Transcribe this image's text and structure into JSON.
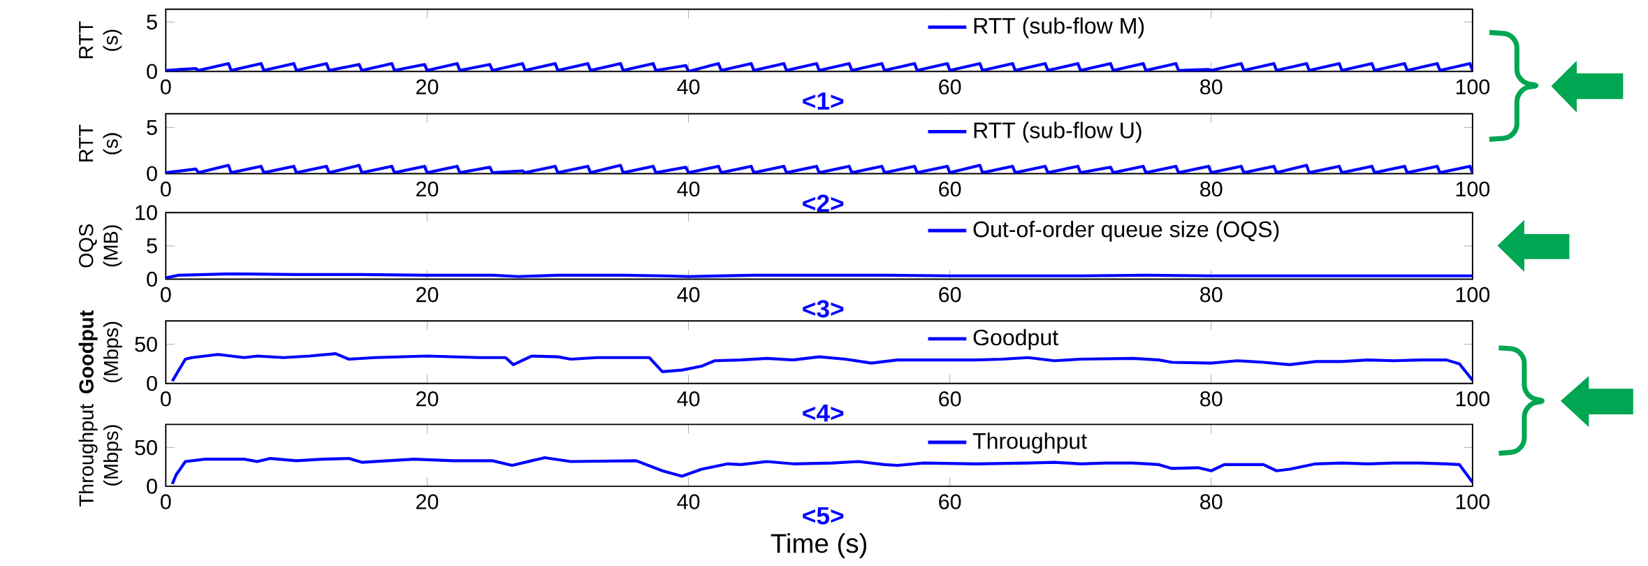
{
  "chart_data": [
    {
      "type": "line",
      "ylabel": "RTT (s)",
      "xlim": [
        0,
        100
      ],
      "ylim": [
        0,
        6.3
      ],
      "xticks": [
        0,
        20,
        40,
        60,
        80,
        100
      ],
      "yticks": [
        0,
        5
      ],
      "legend": "top",
      "annotations": [
        "<1>"
      ],
      "x": [
        0,
        2.3,
        2.5,
        4.8,
        5,
        7.3,
        7.5,
        9.8,
        10,
        12.3,
        12.5,
        14.8,
        15,
        17.3,
        17.5,
        19.8,
        20,
        22.3,
        22.5,
        24.8,
        25,
        27.3,
        27.5,
        29.8,
        30,
        32.3,
        32.5,
        34.8,
        35,
        37.3,
        37.5,
        39.8,
        40,
        42.3,
        42.5,
        44.8,
        45,
        47.3,
        47.5,
        49.8,
        50,
        52.3,
        52.5,
        54.8,
        55,
        57.3,
        57.5,
        59.8,
        60,
        62.3,
        62.5,
        64.8,
        65,
        67.3,
        67.5,
        69.8,
        70,
        72.3,
        72.5,
        74.8,
        75,
        77.3,
        77.5,
        79.8,
        80,
        82.3,
        82.5,
        84.8,
        85,
        87.3,
        87.5,
        89.8,
        90,
        92.3,
        92.5,
        94.8,
        95,
        97.3,
        97.5,
        99.8,
        100
      ],
      "series": [
        {
          "name": "RTT (sub-flow M)",
          "color": "#0000ff",
          "values": [
            0.1,
            0.3,
            0.1,
            0.8,
            0.1,
            0.8,
            0.1,
            0.8,
            0.1,
            0.8,
            0.1,
            0.7,
            0.1,
            0.8,
            0.1,
            0.7,
            0.1,
            0.8,
            0.1,
            0.7,
            0.1,
            0.8,
            0.1,
            0.8,
            0.1,
            0.8,
            0.1,
            0.8,
            0.1,
            0.8,
            0.1,
            0.6,
            0.0,
            0.8,
            0.1,
            0.8,
            0.1,
            0.8,
            0.1,
            0.8,
            0.1,
            0.8,
            0.1,
            0.8,
            0.1,
            0.8,
            0.1,
            0.8,
            0.1,
            0.8,
            0.1,
            0.8,
            0.1,
            0.8,
            0.1,
            0.8,
            0.1,
            0.8,
            0.1,
            0.8,
            0.1,
            0.8,
            0.1,
            0.2,
            0.1,
            0.8,
            0.1,
            0.8,
            0.1,
            0.8,
            0.1,
            0.8,
            0.1,
            0.8,
            0.1,
            0.8,
            0.1,
            0.8,
            0.1,
            0.8,
            0.1
          ]
        }
      ]
    },
    {
      "type": "line",
      "ylabel": "RTT (s)",
      "xlim": [
        0,
        100
      ],
      "ylim": [
        0,
        6.5
      ],
      "xticks": [
        0,
        20,
        40,
        60,
        80,
        100
      ],
      "yticks": [
        0,
        5
      ],
      "legend": "top",
      "annotations": [
        "<2>"
      ],
      "x": [
        0,
        2.3,
        2.5,
        4.8,
        5,
        7.3,
        7.5,
        9.8,
        10,
        12.3,
        12.5,
        14.8,
        15,
        17.3,
        17.5,
        19.8,
        20,
        22.3,
        22.5,
        24.8,
        25,
        27.3,
        27.5,
        29.8,
        30,
        32.3,
        32.5,
        34.8,
        35,
        37.3,
        37.5,
        39.8,
        40,
        42.3,
        42.5,
        44.8,
        45,
        47.3,
        47.5,
        49.8,
        50,
        52.3,
        52.5,
        54.8,
        55,
        57.3,
        57.5,
        59.8,
        60,
        62.3,
        62.5,
        64.8,
        65,
        67.3,
        67.5,
        69.8,
        70,
        72.3,
        72.5,
        74.8,
        75,
        77.3,
        77.5,
        79.8,
        80,
        82.3,
        82.5,
        84.8,
        85,
        87.3,
        87.5,
        89.8,
        90,
        92.3,
        92.5,
        94.8,
        95,
        97.3,
        97.5,
        99.8,
        100
      ],
      "series": [
        {
          "name": "RTT (sub-flow U)",
          "color": "#0000ff",
          "values": [
            0.1,
            0.5,
            0.1,
            0.9,
            0.1,
            0.8,
            0.1,
            0.8,
            0.1,
            0.8,
            0.1,
            0.9,
            0.1,
            0.8,
            0.1,
            0.8,
            0.1,
            0.8,
            0.1,
            0.7,
            0.1,
            0.3,
            0.1,
            0.8,
            0.1,
            0.8,
            0.1,
            0.9,
            0.1,
            0.8,
            0.1,
            0.7,
            0.1,
            0.8,
            0.1,
            0.8,
            0.1,
            0.8,
            0.1,
            0.8,
            0.1,
            0.8,
            0.1,
            0.8,
            0.1,
            0.8,
            0.1,
            0.8,
            0.1,
            0.9,
            0.1,
            0.8,
            0.1,
            0.8,
            0.1,
            0.8,
            0.1,
            0.7,
            0.1,
            0.8,
            0.1,
            0.8,
            0.1,
            0.8,
            0.1,
            0.8,
            0.1,
            0.8,
            0.1,
            0.9,
            0.1,
            0.8,
            0.1,
            0.8,
            0.1,
            0.8,
            0.1,
            0.8,
            0.1,
            0.8,
            0.1
          ]
        }
      ]
    },
    {
      "type": "line",
      "ylabel": "OQS (MB)",
      "xlim": [
        0,
        100
      ],
      "ylim": [
        0,
        10
      ],
      "xticks": [
        0,
        20,
        40,
        60,
        80,
        100
      ],
      "yticks": [
        0,
        5,
        10
      ],
      "legend": "top",
      "annotations": [
        "<3>"
      ],
      "x": [
        0,
        1,
        5,
        10,
        15,
        20,
        25,
        27,
        30,
        35,
        38,
        40,
        45,
        50,
        55,
        60,
        65,
        70,
        75,
        80,
        85,
        90,
        95,
        100
      ],
      "series": [
        {
          "name": "Out-of-order  queue size (OQS)",
          "color": "#0000ff",
          "values": [
            0.2,
            0.6,
            0.8,
            0.7,
            0.7,
            0.6,
            0.6,
            0.4,
            0.6,
            0.6,
            0.5,
            0.4,
            0.6,
            0.6,
            0.6,
            0.5,
            0.5,
            0.5,
            0.6,
            0.5,
            0.5,
            0.5,
            0.5,
            0.5
          ]
        }
      ]
    },
    {
      "type": "line",
      "ylabel": "**Goodput** (Mbps)",
      "xlim": [
        0,
        100
      ],
      "ylim": [
        0,
        80
      ],
      "xticks": [
        0,
        20,
        40,
        60,
        80,
        100
      ],
      "yticks": [
        0,
        50
      ],
      "legend": "top",
      "annotations": [
        "<4>"
      ],
      "x": [
        0.5,
        1.5,
        2,
        4,
        6,
        7,
        9,
        11,
        13,
        14,
        16,
        20,
        24,
        26,
        26.6,
        28,
        30,
        31,
        33,
        37,
        38,
        39.5,
        41,
        42,
        44,
        46,
        48,
        50,
        52,
        54,
        56,
        60,
        62,
        64,
        66,
        68,
        70,
        74,
        76,
        77,
        80,
        82,
        84,
        86,
        88,
        90,
        92,
        94,
        96,
        98,
        99,
        100
      ],
      "series": [
        {
          "name": "Goodput",
          "color": "#0000ff",
          "values": [
            3,
            31,
            33,
            37,
            33,
            35,
            33,
            35,
            38,
            31,
            33,
            35,
            33,
            33,
            24,
            35,
            34,
            31,
            33,
            33,
            15,
            17,
            22,
            29,
            30,
            32,
            30,
            34,
            31,
            26,
            30,
            30,
            30,
            31,
            33,
            29,
            31,
            32,
            30,
            27,
            26,
            29,
            27,
            24,
            28,
            28,
            30,
            29,
            30,
            30,
            25,
            4
          ]
        }
      ]
    },
    {
      "type": "line",
      "ylabel": "Throughput (Mbps)",
      "xlabel": "Time (s)",
      "xlim": [
        0,
        100
      ],
      "ylim": [
        0,
        80
      ],
      "xticks": [
        0,
        20,
        40,
        60,
        80,
        100
      ],
      "yticks": [
        0,
        50
      ],
      "legend": "top",
      "annotations": [
        "<5>"
      ],
      "x": [
        0.5,
        0.8,
        1.5,
        3,
        6,
        7,
        8,
        10,
        12,
        14,
        15,
        17,
        19,
        22,
        25,
        26.5,
        28,
        29,
        31,
        36,
        38,
        39.5,
        41,
        43,
        44,
        46,
        48,
        51,
        53,
        55,
        56,
        58,
        62,
        66,
        68,
        70,
        72,
        74,
        76,
        77,
        79,
        80,
        81,
        84,
        85,
        86,
        88,
        90,
        92,
        94,
        96,
        98,
        99,
        100
      ],
      "series": [
        {
          "name": "Throughput",
          "color": "#0000ff",
          "values": [
            3,
            15,
            32,
            35,
            35,
            32,
            36,
            33,
            35,
            36,
            31,
            33,
            35,
            33,
            33,
            27,
            33,
            37,
            32,
            33,
            20,
            13,
            22,
            29,
            28,
            32,
            29,
            30,
            32,
            28,
            27,
            30,
            29,
            30,
            31,
            29,
            30,
            30,
            28,
            23,
            24,
            20,
            28,
            28,
            20,
            22,
            29,
            30,
            29,
            30,
            30,
            29,
            28,
            5
          ]
        }
      ]
    }
  ]
}
